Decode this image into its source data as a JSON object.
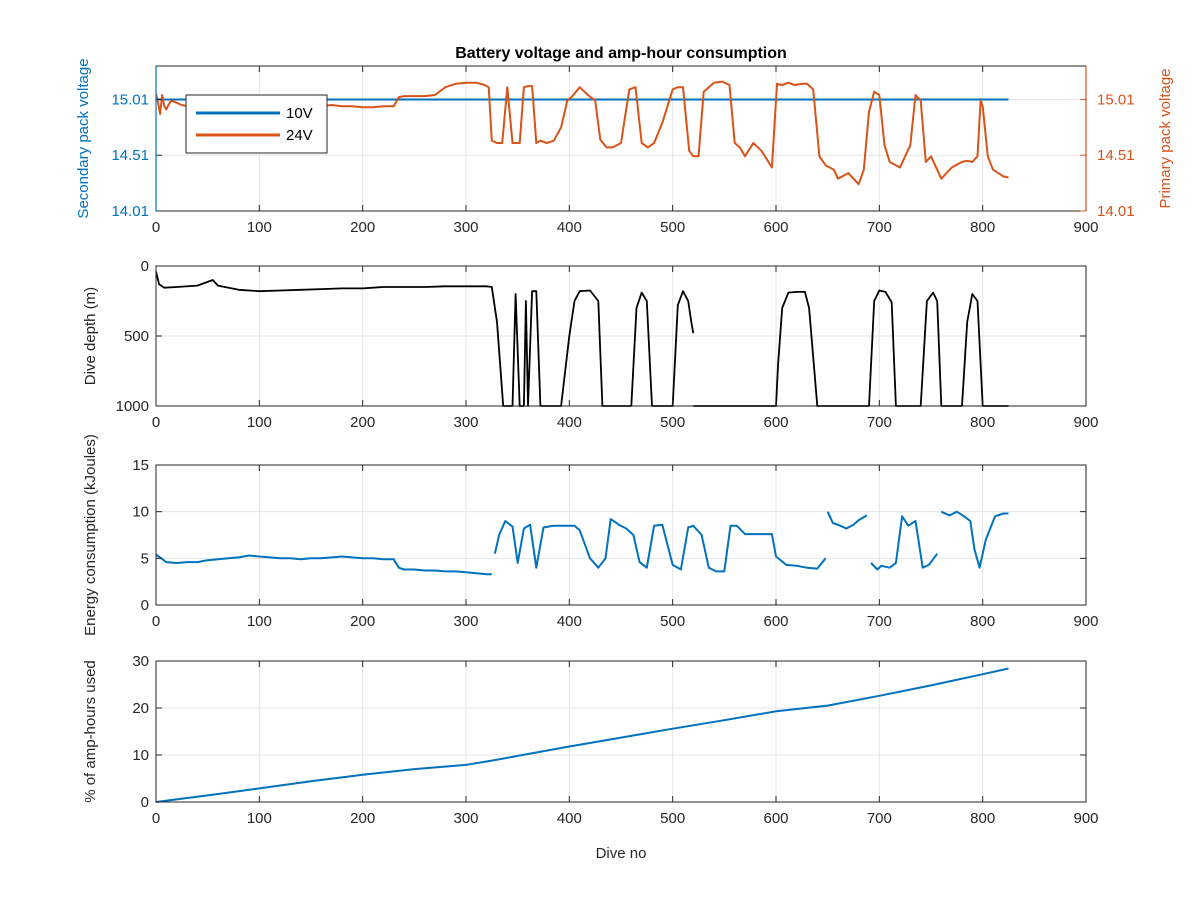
{
  "colors": {
    "blue": "#0072BD",
    "orange": "#D95319",
    "black": "#000000",
    "grid": "#e6e6e6",
    "axis": "#262626"
  },
  "chart_data": [
    {
      "type": "line",
      "title": "Battery voltage and amp-hour consumption",
      "ylabel_left": "Secondary pack voltage",
      "ylabel_right": "Primary pack voltage",
      "xlabel": "",
      "xlim": [
        0,
        900
      ],
      "ylim": [
        14.01,
        15.31
      ],
      "xticks": [
        "0",
        "100",
        "200",
        "300",
        "400",
        "500",
        "600",
        "700",
        "800",
        "900"
      ],
      "yticks": [
        "14.01",
        "14.51",
        "15.01"
      ],
      "grid": true,
      "legend": {
        "placement": "top-left",
        "entries": [
          "10V",
          "24V"
        ]
      },
      "series": [
        {
          "name": "10V",
          "axis": "left",
          "color": "blue",
          "x": [
            0,
            825
          ],
          "y": [
            15.01,
            15.01
          ]
        },
        {
          "name": "24V",
          "axis": "right",
          "color": "orange",
          "x": [
            0,
            2,
            4,
            6,
            8,
            10,
            12,
            15,
            20,
            25,
            30,
            35,
            40,
            50,
            60,
            70,
            80,
            90,
            100,
            110,
            120,
            130,
            140,
            150,
            160,
            170,
            180,
            190,
            200,
            210,
            220,
            230,
            235,
            240,
            245,
            260,
            270,
            280,
            290,
            300,
            310,
            318,
            322,
            325,
            330,
            335,
            340,
            345,
            352,
            356,
            360,
            364,
            368,
            372,
            378,
            385,
            392,
            398,
            403,
            410,
            418,
            425,
            430,
            436,
            442,
            450,
            458,
            464,
            470,
            476,
            482,
            490,
            500,
            505,
            510,
            516,
            520,
            525,
            530,
            540,
            548,
            555,
            560,
            565,
            570,
            578,
            586,
            596,
            601,
            606,
            612,
            618,
            625,
            630,
            636,
            642,
            648,
            652,
            656,
            660,
            670,
            680,
            685,
            690,
            695,
            700,
            705,
            710,
            720,
            730,
            735,
            740,
            745,
            750,
            760,
            770,
            780,
            785,
            790,
            795,
            798,
            800,
            805,
            810,
            815,
            820,
            825
          ],
          "y": [
            15.06,
            14.98,
            14.88,
            15.05,
            14.95,
            14.92,
            14.96,
            15.0,
            14.98,
            14.96,
            14.95,
            14.96,
            14.98,
            14.97,
            14.96,
            14.95,
            14.95,
            14.96,
            14.97,
            14.95,
            14.95,
            14.96,
            14.96,
            14.93,
            14.95,
            14.96,
            14.95,
            14.95,
            14.94,
            14.94,
            14.95,
            14.95,
            15.03,
            15.04,
            15.04,
            15.04,
            15.05,
            15.12,
            15.15,
            15.16,
            15.16,
            15.14,
            15.12,
            14.64,
            14.62,
            14.62,
            15.12,
            14.62,
            14.62,
            15.12,
            15.13,
            15.13,
            14.62,
            14.64,
            14.62,
            14.64,
            14.76,
            15.0,
            15.04,
            15.12,
            15.05,
            15.0,
            14.65,
            14.58,
            14.58,
            14.62,
            15.1,
            15.12,
            14.62,
            14.58,
            14.62,
            14.8,
            15.1,
            15.12,
            15.12,
            14.55,
            14.5,
            14.5,
            15.08,
            15.16,
            15.17,
            15.14,
            14.62,
            14.58,
            14.5,
            14.62,
            14.55,
            14.4,
            15.15,
            15.14,
            15.16,
            15.14,
            15.15,
            15.15,
            15.1,
            14.5,
            14.42,
            14.4,
            14.38,
            14.3,
            14.35,
            14.25,
            14.38,
            14.9,
            15.08,
            15.05,
            14.6,
            14.45,
            14.4,
            14.6,
            15.05,
            15.0,
            14.45,
            14.5,
            14.3,
            14.4,
            14.45,
            14.46,
            14.45,
            14.5,
            15.0,
            14.95,
            14.5,
            14.38,
            14.35,
            14.32,
            14.31
          ]
        }
      ]
    },
    {
      "type": "line",
      "title": "",
      "ylabel": "Dive depth (m)",
      "xlabel": "",
      "xlim": [
        0,
        900
      ],
      "ylim": [
        0,
        1000
      ],
      "y_reversed": true,
      "xticks": [
        "0",
        "100",
        "200",
        "300",
        "400",
        "500",
        "600",
        "700",
        "800",
        "900"
      ],
      "yticks": [
        "0",
        "500",
        "1000"
      ],
      "grid": true,
      "series": [
        {
          "color": "black",
          "x": [
            0,
            3,
            8,
            20,
            40,
            55,
            60,
            80,
            100,
            120,
            140,
            160,
            180,
            200,
            220,
            240,
            260,
            280,
            300,
            320,
            325,
            330,
            336,
            340,
            345,
            348,
            352,
            356,
            358,
            360,
            364,
            368,
            372,
            378,
            385,
            392,
            400,
            405,
            410,
            420,
            428,
            432,
            440,
            450,
            460,
            465,
            470,
            475,
            480,
            490,
            500,
            505,
            510,
            515,
            518,
            520
          ],
          "y": [
            40,
            130,
            155,
            150,
            140,
            100,
            140,
            170,
            180,
            175,
            170,
            165,
            160,
            160,
            150,
            150,
            150,
            145,
            145,
            145,
            150,
            400,
            1000,
            1000,
            1000,
            200,
            1000,
            1000,
            250,
            1000,
            180,
            180,
            1000,
            1000,
            1000,
            1000,
            500,
            250,
            180,
            175,
            250,
            1000,
            1000,
            1000,
            1000,
            300,
            190,
            250,
            1000,
            1000,
            1000,
            280,
            180,
            250,
            400,
            480
          ]
        },
        {
          "color": "black",
          "x": [
            520,
            580,
            600,
            602,
            606,
            612,
            620,
            628,
            632,
            640,
            646,
            650,
            690,
            695,
            700,
            706,
            712,
            716,
            718,
            720,
            740,
            746,
            752,
            756,
            760,
            780,
            785,
            790,
            795,
            800,
            810,
            825
          ],
          "y": [
            1000,
            1000,
            1000,
            700,
            300,
            190,
            185,
            185,
            300,
            1000,
            1000,
            1000,
            1000,
            250,
            175,
            185,
            260,
            1000,
            1000,
            1000,
            1000,
            250,
            190,
            250,
            1000,
            1000,
            400,
            200,
            250,
            1000,
            1000,
            1000
          ]
        }
      ]
    },
    {
      "type": "line",
      "title": "",
      "ylabel": "Energy consumption (kJoules)",
      "xlabel": "",
      "xlim": [
        0,
        900
      ],
      "ylim": [
        0,
        15
      ],
      "xticks": [
        "0",
        "100",
        "200",
        "300",
        "400",
        "500",
        "600",
        "700",
        "800",
        "900"
      ],
      "yticks": [
        "0",
        "5",
        "10",
        "15"
      ],
      "grid": true,
      "series": [
        {
          "color": "blue",
          "x": [
            0,
            5,
            10,
            20,
            30,
            40,
            50,
            60,
            70,
            80,
            90,
            100,
            110,
            120,
            130,
            140,
            150,
            160,
            170,
            180,
            190,
            200,
            210,
            220,
            230,
            235,
            240,
            250,
            260,
            270,
            280,
            290,
            300,
            310,
            320,
            325
          ],
          "y": [
            5.4,
            5.0,
            4.6,
            4.5,
            4.6,
            4.6,
            4.8,
            4.9,
            5.0,
            5.1,
            5.3,
            5.2,
            5.1,
            5.0,
            5.0,
            4.9,
            5.0,
            5.0,
            5.1,
            5.2,
            5.1,
            5.0,
            5.0,
            4.9,
            4.9,
            4.0,
            3.8,
            3.8,
            3.7,
            3.7,
            3.6,
            3.6,
            3.5,
            3.4,
            3.3,
            3.3
          ]
        },
        {
          "color": "blue",
          "x": [
            328,
            332,
            338,
            345,
            350,
            356,
            362,
            368,
            375,
            385,
            395,
            405,
            410,
            420,
            428,
            435,
            440,
            448,
            455,
            462,
            468,
            475,
            482,
            490,
            500,
            508,
            515,
            520,
            528,
            535,
            542,
            550,
            556,
            562,
            570,
            580,
            590,
            596,
            600,
            610,
            620,
            630,
            640,
            648
          ],
          "y": [
            5.5,
            7.5,
            9.0,
            8.4,
            4.5,
            8.2,
            8.6,
            4.0,
            8.3,
            8.5,
            8.5,
            8.5,
            8.0,
            5.0,
            4.0,
            5.0,
            9.2,
            8.6,
            8.2,
            7.5,
            4.6,
            4.0,
            8.5,
            8.6,
            4.3,
            3.8,
            8.3,
            8.5,
            7.5,
            4.0,
            3.6,
            3.6,
            8.5,
            8.5,
            7.6,
            7.6,
            7.6,
            7.6,
            5.2,
            4.3,
            4.2,
            4.0,
            3.9,
            5.0
          ]
        },
        {
          "color": "blue",
          "x": [
            650,
            655,
            662,
            668,
            675,
            680,
            688
          ],
          "y": [
            10.0,
            8.8,
            8.5,
            8.2,
            8.6,
            9.1,
            9.6
          ]
        },
        {
          "color": "blue",
          "x": [
            692,
            698,
            702,
            710,
            716,
            722,
            728,
            735,
            742,
            748,
            756
          ],
          "y": [
            4.5,
            3.8,
            4.2,
            4.0,
            4.5,
            9.5,
            8.5,
            9.0,
            4.0,
            4.3,
            5.5
          ]
        },
        {
          "color": "blue",
          "x": [
            760,
            768,
            775,
            782,
            788,
            792,
            797,
            803,
            812,
            820,
            825
          ],
          "y": [
            10.0,
            9.6,
            10.0,
            9.5,
            9.0,
            6.0,
            4.0,
            7.0,
            9.5,
            9.8,
            9.8
          ]
        }
      ]
    },
    {
      "type": "line",
      "title": "",
      "ylabel": "% of amp-hours used",
      "xlabel": "Dive no",
      "xlim": [
        0,
        900
      ],
      "ylim": [
        0,
        30
      ],
      "xticks": [
        "0",
        "100",
        "200",
        "300",
        "400",
        "500",
        "600",
        "700",
        "800",
        "900"
      ],
      "yticks": [
        "0",
        "10",
        "20",
        "30"
      ],
      "grid": true,
      "series": [
        {
          "color": "blue",
          "x": [
            0,
            50,
            100,
            150,
            200,
            250,
            300,
            325,
            350,
            400,
            450,
            500,
            550,
            600,
            650,
            700,
            750,
            800,
            825
          ],
          "y": [
            0,
            1.4,
            2.9,
            4.4,
            5.8,
            7.0,
            7.9,
            8.8,
            9.8,
            11.8,
            13.7,
            15.6,
            17.4,
            19.3,
            20.5,
            22.6,
            24.8,
            27.2,
            28.4
          ]
        }
      ]
    }
  ]
}
